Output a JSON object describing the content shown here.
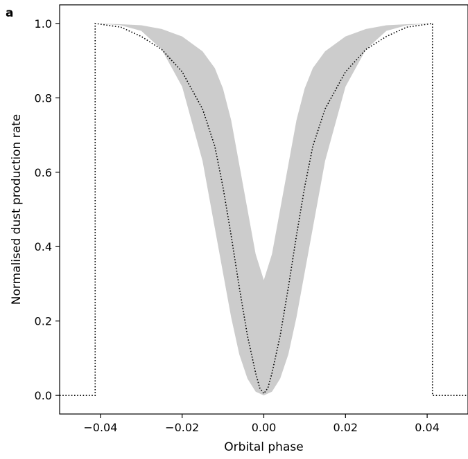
{
  "chart_data": {
    "type": "area",
    "panel_label": "a",
    "title": "",
    "xlabel": "Orbital phase",
    "ylabel": "Normalised dust production rate",
    "xlim": [
      -0.05,
      0.05
    ],
    "ylim": [
      -0.05,
      1.05
    ],
    "xticks": [
      -0.04,
      -0.02,
      0.0,
      0.02,
      0.04
    ],
    "xtick_labels": [
      "−0.04",
      "−0.02",
      "0.00",
      "0.02",
      "0.04"
    ],
    "yticks": [
      0.0,
      0.2,
      0.4,
      0.6,
      0.8,
      1.0
    ],
    "ytick_labels": [
      "0.0",
      "0.2",
      "0.4",
      "0.6",
      "0.8",
      "1.0"
    ],
    "grid": false,
    "legend": "none",
    "band": {
      "color": "#cccccc",
      "x": [
        -0.041,
        -0.035,
        -0.03,
        -0.025,
        -0.02,
        -0.015,
        -0.012,
        -0.01,
        -0.008,
        -0.006,
        -0.004,
        -0.002,
        0.0,
        0.002,
        0.004,
        0.006,
        0.008,
        0.01,
        0.012,
        0.015,
        0.02,
        0.025,
        0.03,
        0.035,
        0.041
      ],
      "lower": [
        1.0,
        0.995,
        0.98,
        0.93,
        0.83,
        0.63,
        0.45,
        0.33,
        0.21,
        0.11,
        0.045,
        0.01,
        0.0,
        0.01,
        0.045,
        0.11,
        0.21,
        0.33,
        0.45,
        0.63,
        0.83,
        0.93,
        0.98,
        0.995,
        1.0
      ],
      "upper": [
        1.0,
        0.998,
        0.995,
        0.985,
        0.965,
        0.925,
        0.88,
        0.825,
        0.74,
        0.62,
        0.5,
        0.38,
        0.31,
        0.38,
        0.5,
        0.62,
        0.74,
        0.825,
        0.88,
        0.925,
        0.965,
        0.985,
        0.995,
        0.998,
        1.0
      ]
    },
    "series": [
      {
        "style": "dotted",
        "color": "#000000",
        "x": [
          -0.05,
          -0.0413,
          -0.0413,
          -0.035,
          -0.03,
          -0.025,
          -0.02,
          -0.015,
          -0.012,
          -0.01,
          -0.008,
          -0.006,
          -0.004,
          -0.002,
          -0.001,
          0.0,
          0.001,
          0.002,
          0.004,
          0.006,
          0.008,
          0.01,
          0.012,
          0.015,
          0.02,
          0.025,
          0.03,
          0.035,
          0.0413,
          0.0413,
          0.05
        ],
        "y": [
          0.0,
          0.0,
          1.0,
          0.99,
          0.965,
          0.93,
          0.87,
          0.77,
          0.67,
          0.56,
          0.43,
          0.29,
          0.16,
          0.06,
          0.02,
          0.005,
          0.02,
          0.06,
          0.16,
          0.29,
          0.43,
          0.56,
          0.67,
          0.77,
          0.87,
          0.93,
          0.965,
          0.99,
          1.0,
          0.0,
          0.0
        ]
      }
    ]
  }
}
